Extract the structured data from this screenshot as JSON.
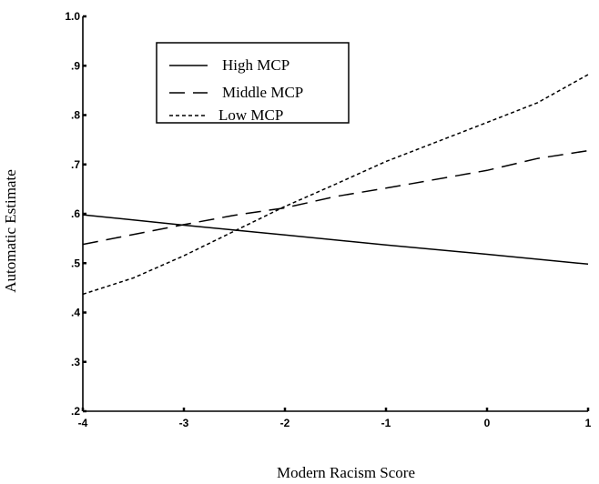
{
  "chart_data": {
    "type": "line",
    "title": "",
    "xlabel": "Modern Racism Score",
    "ylabel": "Automatic Estimate",
    "xlim": [
      -4,
      1
    ],
    "ylim": [
      0.2,
      1.0
    ],
    "x_ticks": [
      -4,
      -3,
      -2,
      -1,
      0,
      1
    ],
    "x_tick_labels": [
      "-4",
      "-3",
      "-2",
      "-1",
      "0",
      "1"
    ],
    "y_ticks": [
      0.2,
      0.3,
      0.4,
      0.5,
      0.6,
      0.7,
      0.8,
      0.9,
      1.0
    ],
    "y_tick_labels": [
      ".2",
      ".3",
      ".4",
      ".5",
      ".6",
      ".7",
      ".8",
      ".9",
      "1.0"
    ],
    "grid": false,
    "legend_position": "top-left",
    "series": [
      {
        "name": "High MCP",
        "style": "solid",
        "x": [
          -4,
          -3,
          -2,
          -1,
          0,
          1
        ],
        "y": [
          0.598,
          0.577,
          0.557,
          0.537,
          0.518,
          0.498
        ]
      },
      {
        "name": "Middle MCP",
        "style": "dashed",
        "x": [
          -4,
          -3,
          -2.5,
          -2,
          -1.5,
          -1,
          0,
          0.5,
          1
        ],
        "y": [
          0.538,
          0.578,
          0.597,
          0.612,
          0.635,
          0.652,
          0.688,
          0.712,
          0.728
        ]
      },
      {
        "name": "Low MCP",
        "style": "dotted",
        "x": [
          -4,
          -3.5,
          -3,
          -2.5,
          -2,
          -1.5,
          -1,
          0,
          0.5,
          1
        ],
        "y": [
          0.437,
          0.47,
          0.515,
          0.565,
          0.615,
          0.66,
          0.706,
          0.785,
          0.825,
          0.882
        ]
      }
    ]
  }
}
